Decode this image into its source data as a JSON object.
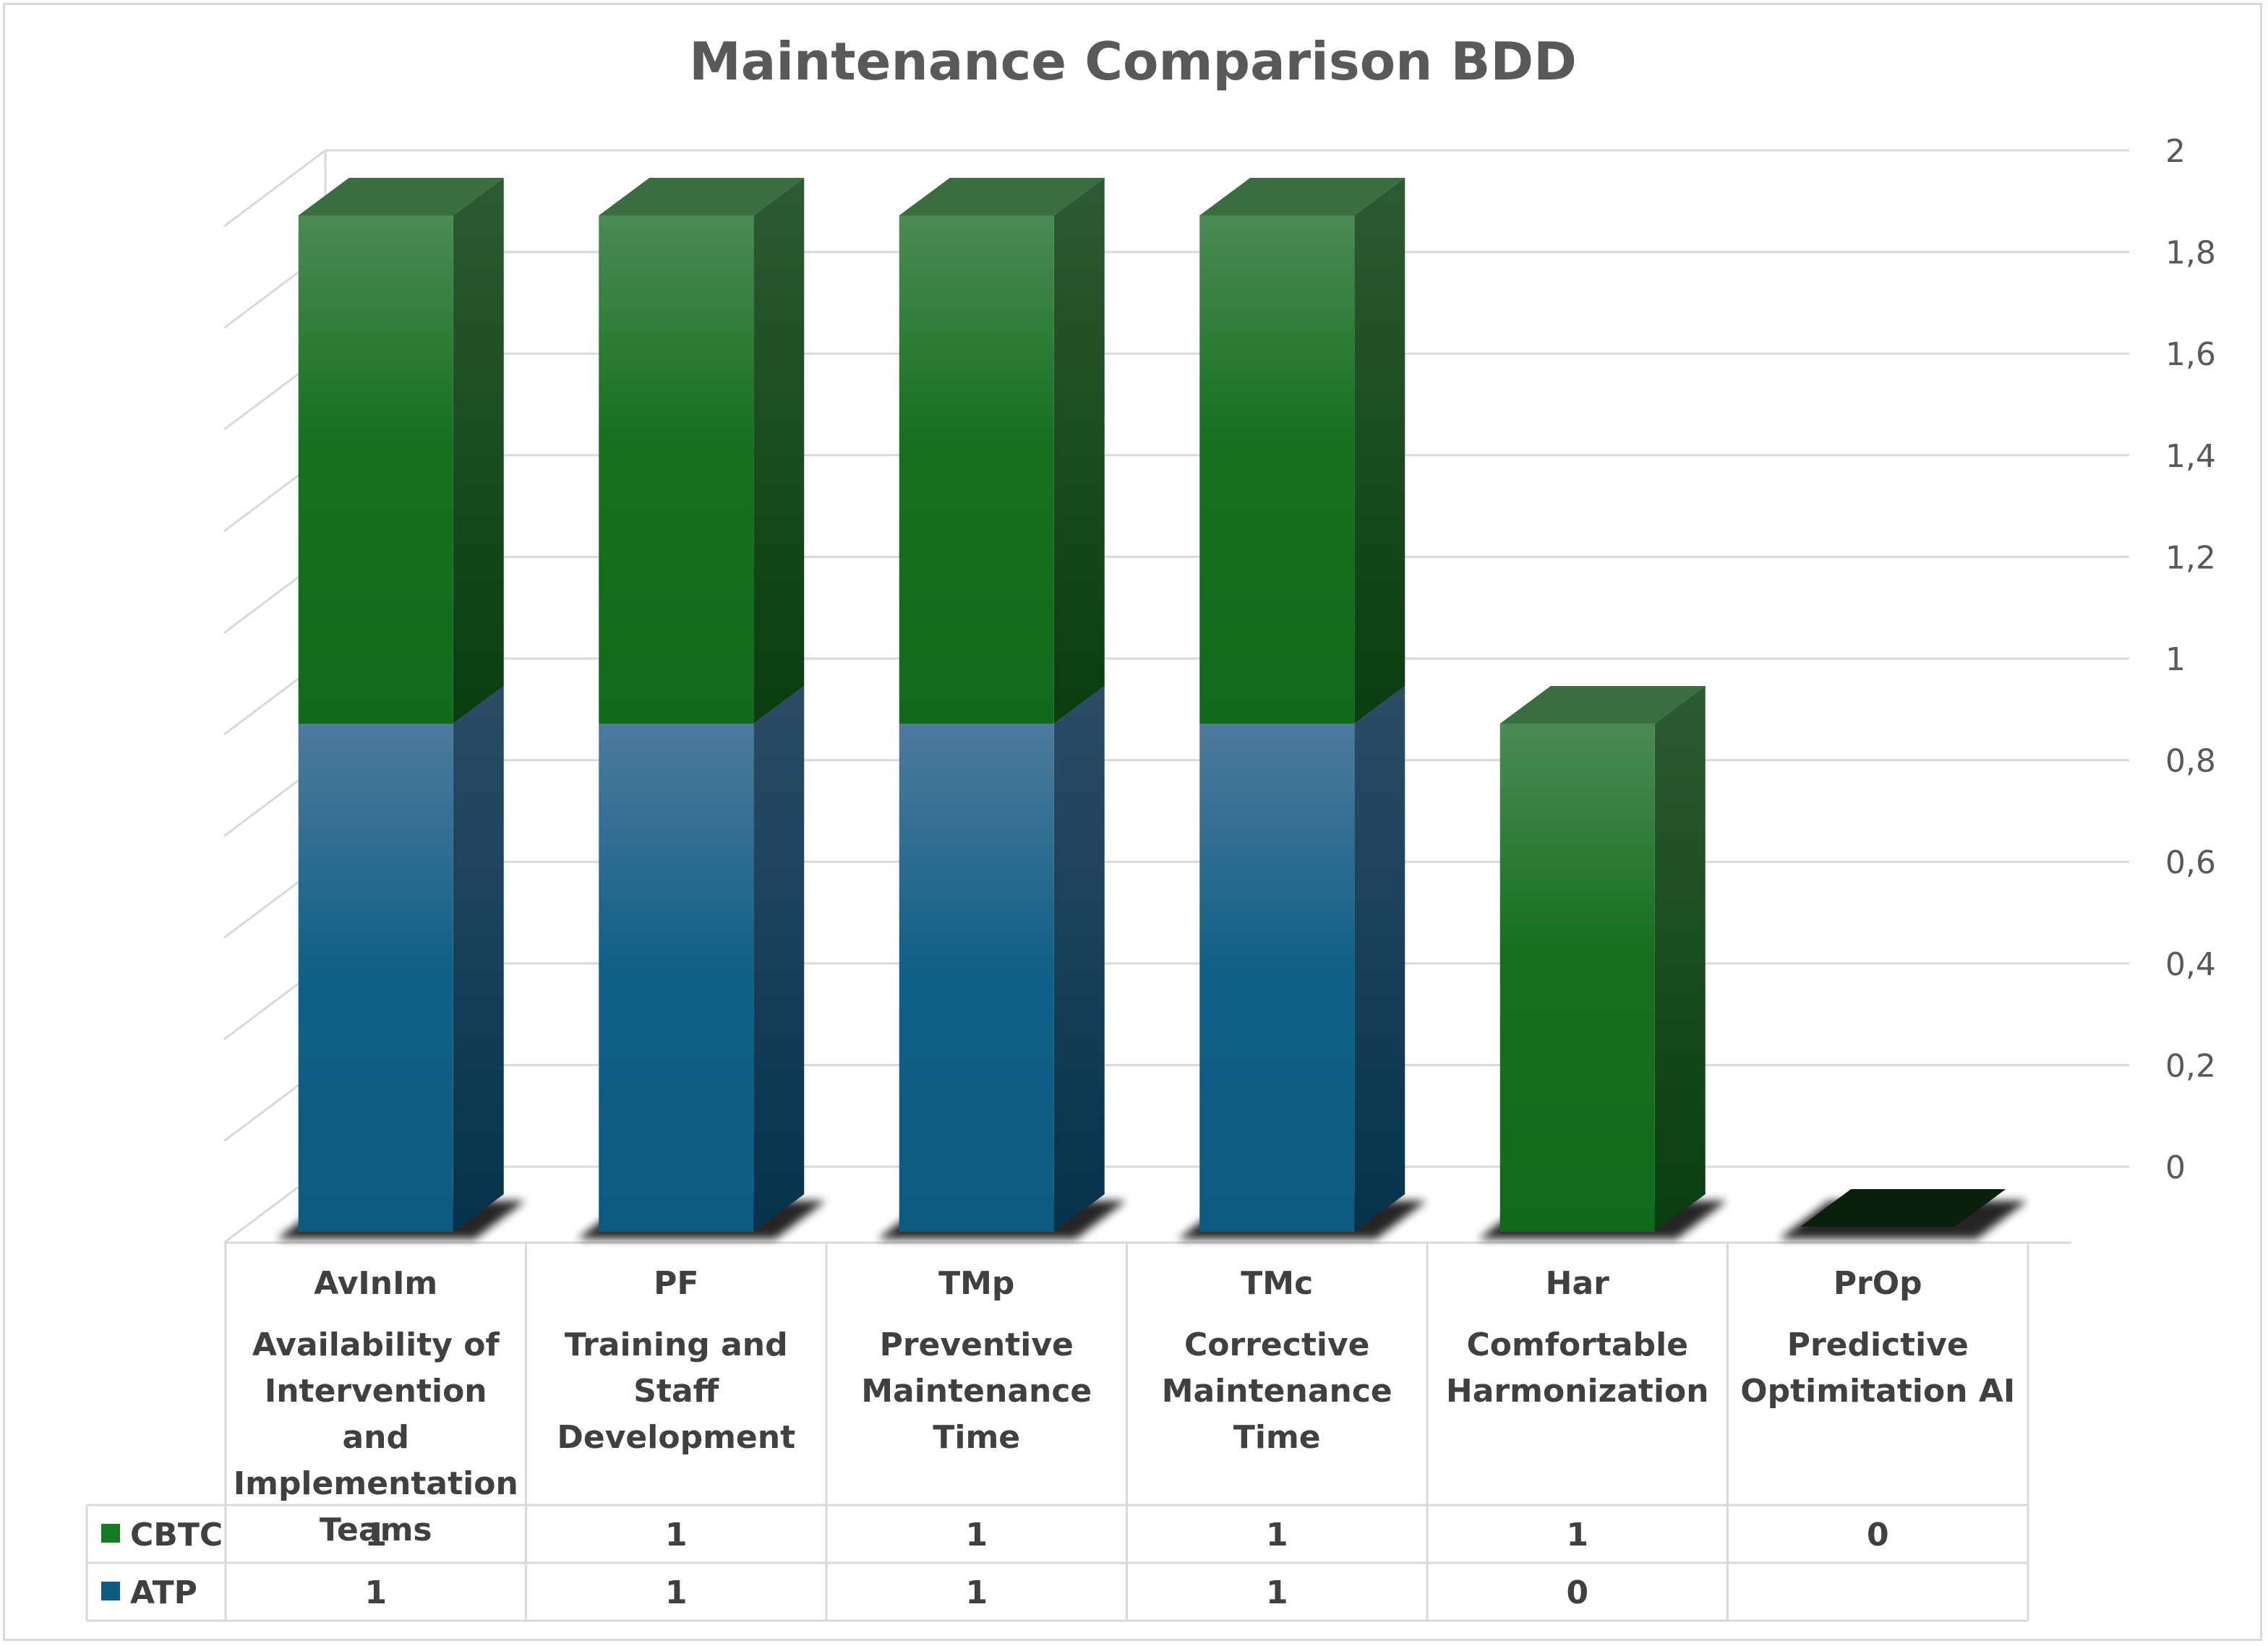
{
  "chart_data": {
    "type": "bar",
    "stacked": true,
    "three_d": true,
    "title": "Maintenance Comparison BDD",
    "categories": [
      {
        "code": "AvInIm",
        "name": "Availability of Intervention and Implementation Teams"
      },
      {
        "code": "PF",
        "name": "Training and Staff Development"
      },
      {
        "code": "TMp",
        "name": "Preventive Maintenance Time"
      },
      {
        "code": "TMc",
        "name": "Corrective Maintenance Time"
      },
      {
        "code": "Har",
        "name": "Comfortable Harmonization"
      },
      {
        "code": "PrOp",
        "name": "Predictive Optimitation AI"
      }
    ],
    "series": [
      {
        "name": "ATP",
        "values": [
          1,
          1,
          1,
          1,
          0,
          null
        ],
        "labels": [
          "1",
          "1",
          "1",
          "1",
          "0",
          ""
        ],
        "color": "#0f5a80"
      },
      {
        "name": "CBTC",
        "values": [
          1,
          1,
          1,
          1,
          1,
          0
        ],
        "labels": [
          "1",
          "1",
          "1",
          "1",
          "1",
          "0"
        ],
        "color": "#177a25"
      }
    ],
    "yaxis": {
      "position": "right",
      "ylim": [
        0,
        2
      ],
      "ticks": [
        "0",
        "0,2",
        "0,4",
        "0,6",
        "0,8",
        "1",
        "1,2",
        "1,4",
        "1,6",
        "1,8",
        "2"
      ]
    },
    "grid": true,
    "data_table": true,
    "legend_position": "data-table"
  }
}
